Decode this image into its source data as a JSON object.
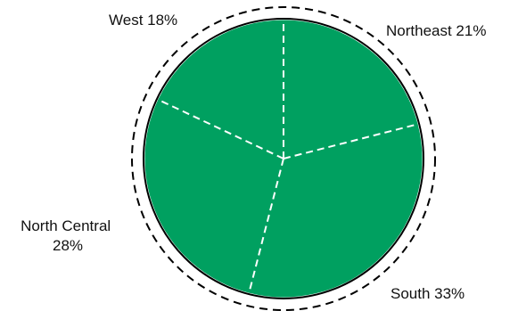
{
  "chart_data": {
    "type": "pie",
    "categories": [
      "Northeast",
      "South",
      "North Central",
      "West"
    ],
    "values": [
      21,
      33,
      28,
      18
    ],
    "labels": [
      {
        "category": "Northeast",
        "lines": [
          "Northeast 21%"
        ]
      },
      {
        "category": "South",
        "lines": [
          "South 33%"
        ]
      },
      {
        "category": "North Central",
        "lines": [
          "North Central",
          "28%"
        ]
      },
      {
        "category": "West",
        "lines": [
          "West 18%"
        ]
      }
    ],
    "title": "",
    "legend": "none",
    "colors": {
      "fill": "#00a060",
      "slice_divider": "#ffffff",
      "outer_ring": "#000000",
      "rim": "#000000"
    },
    "style": {
      "start": "12 o'clock",
      "direction": "clockwise",
      "dividers": "dashed",
      "outer_ring": "dashed"
    }
  }
}
